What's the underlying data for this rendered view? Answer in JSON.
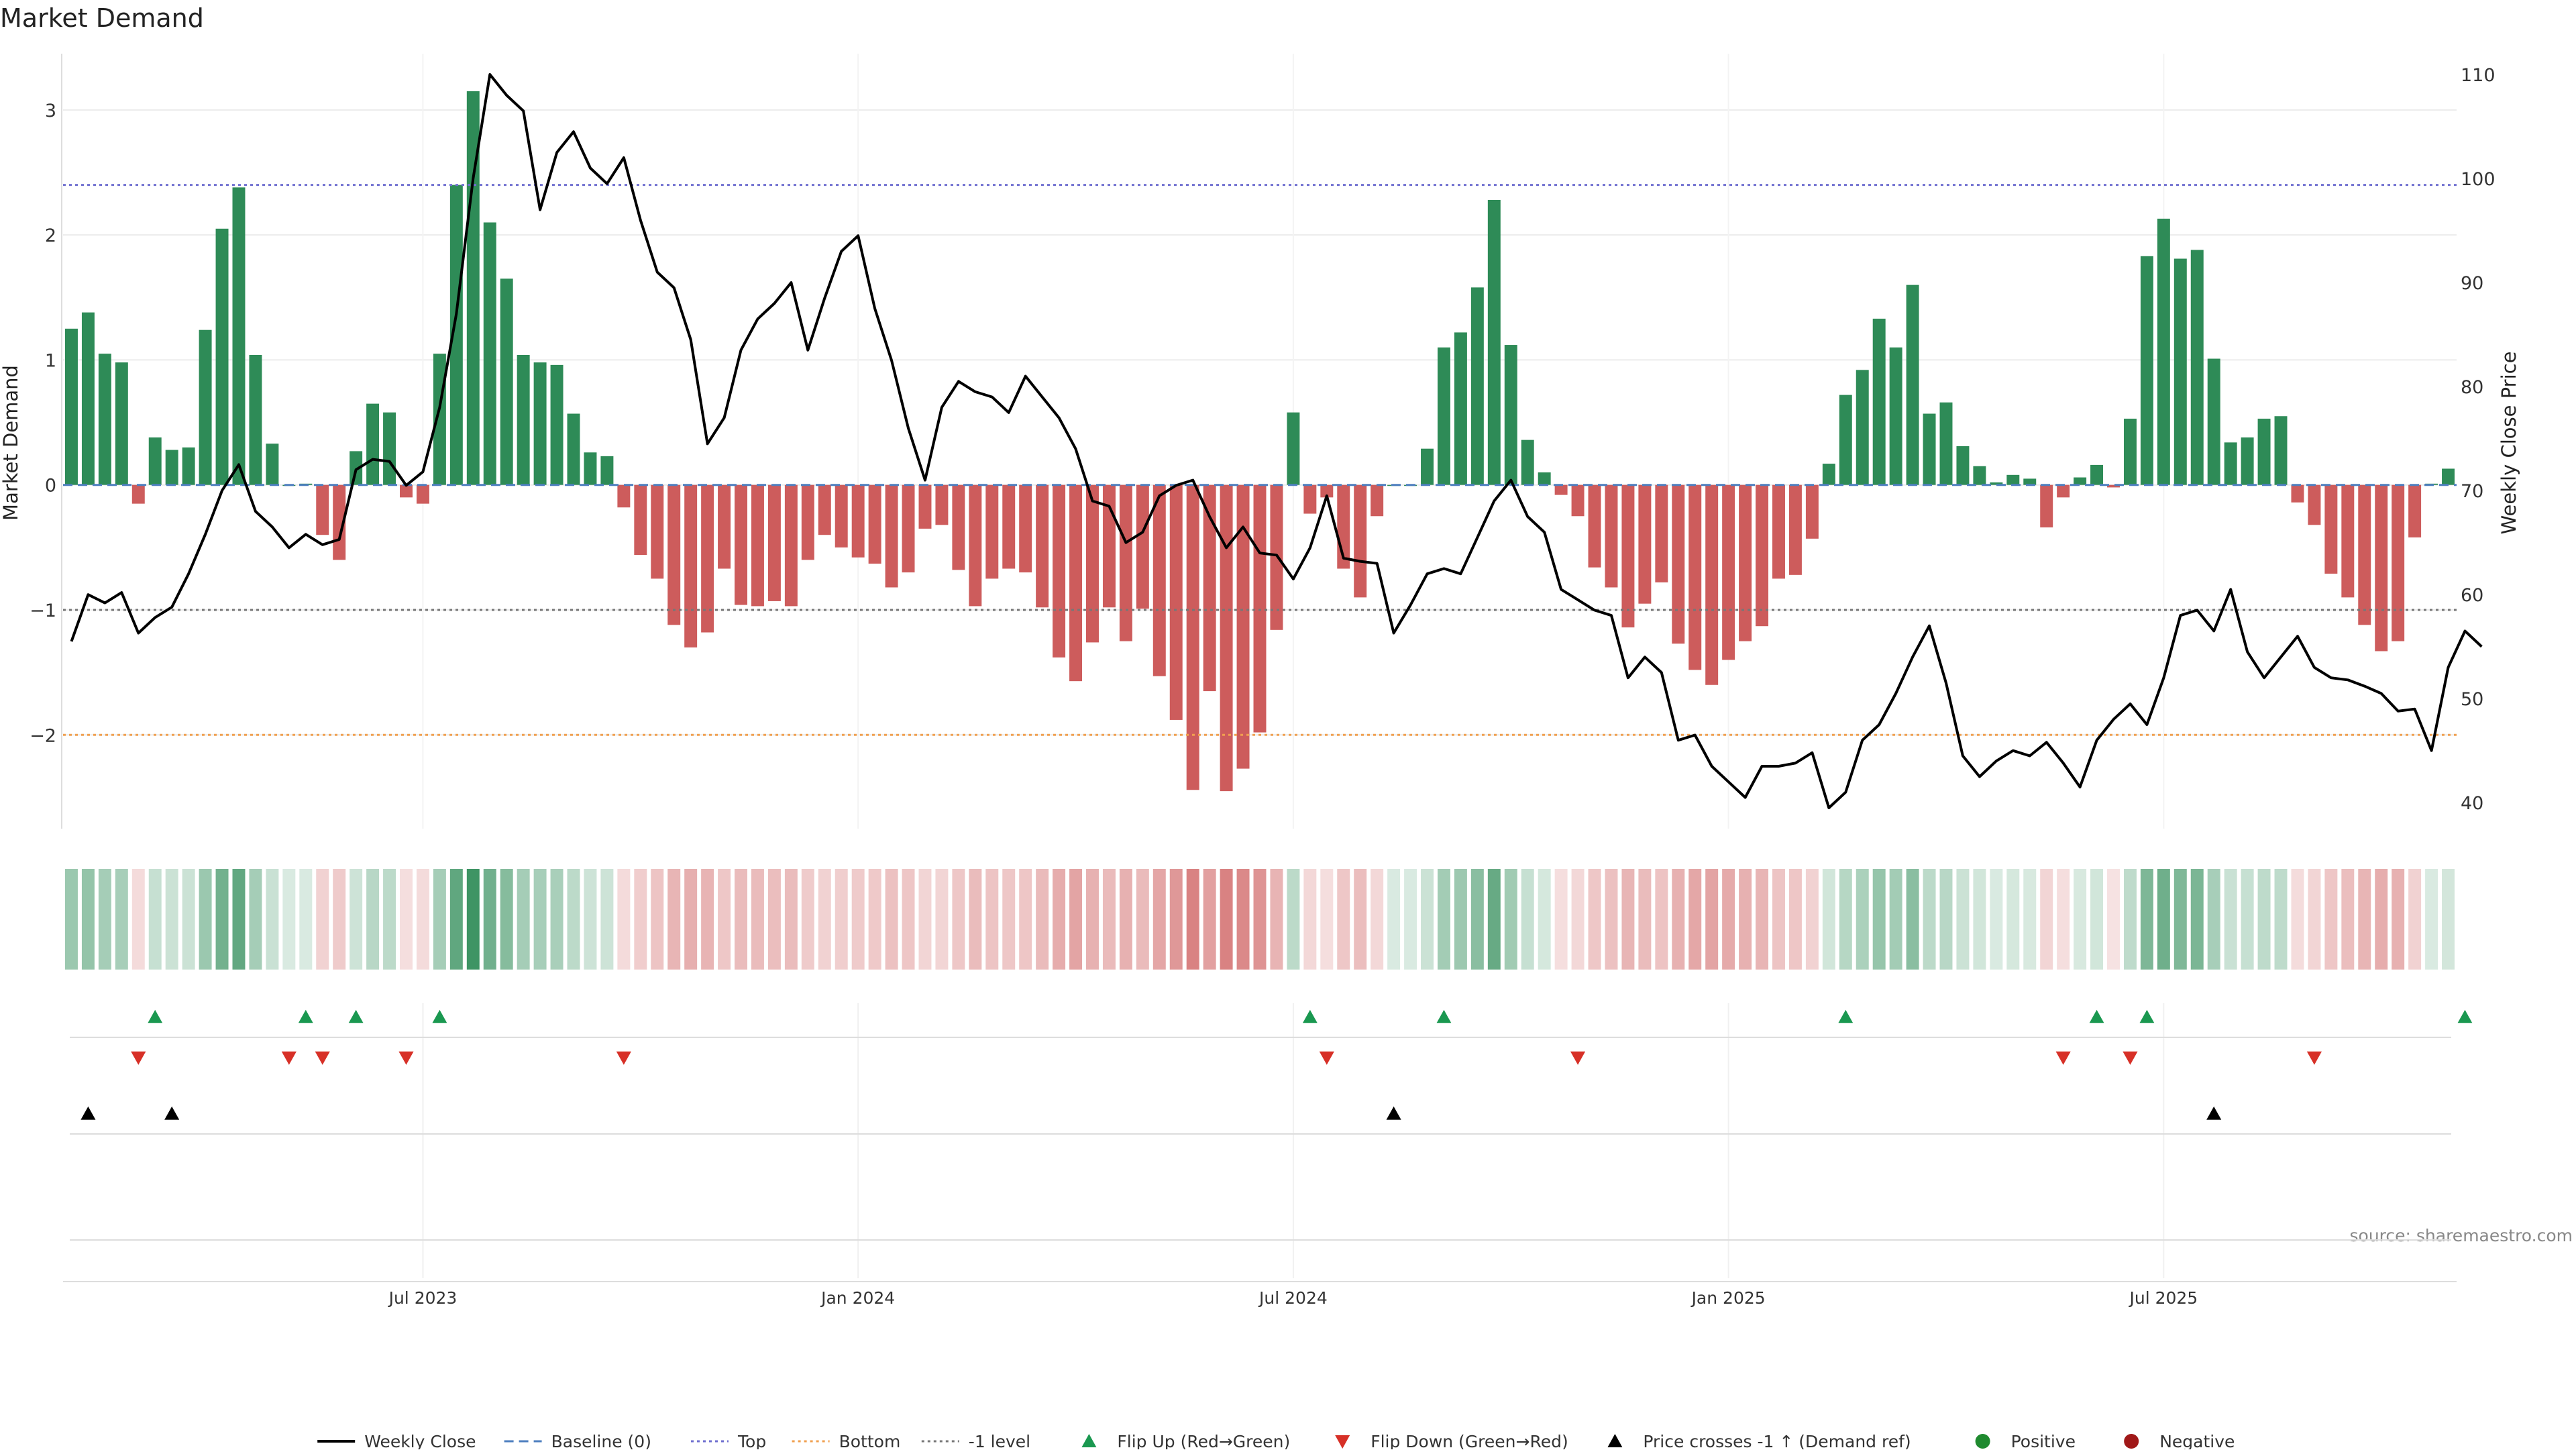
{
  "title": "Market Demand",
  "source": "source: sharemaestro.com",
  "colors": {
    "positive": "#2e8b57",
    "negative": "#cd5c5c",
    "line": "#000000",
    "baseline": "#4e7fbf",
    "top": "#7070d0",
    "bottom": "#f0a050",
    "minus1": "#777777",
    "flip_up": "#1a9850",
    "flip_down": "#d73027",
    "cross": "#000000",
    "grid": "#ececec"
  },
  "chart_data": {
    "type": "bar",
    "title": "Market Demand",
    "ylabel": "Market Demand",
    "y2label": "Weekly Close Price",
    "ylim": [
      -2.75,
      3.45
    ],
    "y2lim": [
      37.5,
      112
    ],
    "yticks": [
      3,
      2,
      1,
      0,
      -1,
      -2
    ],
    "ytick_labels": [
      "3",
      "2",
      "1",
      "0",
      "−1",
      "−2"
    ],
    "y2ticks": [
      110,
      100,
      90,
      80,
      70,
      60,
      50,
      40
    ],
    "y2tick_labels": [
      "110",
      "100",
      "90",
      "80",
      "70",
      "60",
      "50",
      "40"
    ],
    "reference_lines": {
      "top": 2.4,
      "bottom": -2.0,
      "minus1": -1.0,
      "baseline": 0
    },
    "x_ticks": [
      {
        "index": 21.5,
        "label": "Jul 2023"
      },
      {
        "index": 47.5,
        "label": "Jan 2024"
      },
      {
        "index": 73.5,
        "label": "Jul 2024"
      },
      {
        "index": 99.5,
        "label": "Jan 2025"
      },
      {
        "index": 125.5,
        "label": "Jul 2025"
      }
    ],
    "demand": [
      1.25,
      1.38,
      1.05,
      0.98,
      -0.15,
      0.38,
      0.28,
      0.3,
      1.24,
      2.05,
      2.38,
      1.04,
      0.33,
      0.0,
      0.01,
      -0.4,
      -0.6,
      0.27,
      0.65,
      0.58,
      -0.1,
      -0.15,
      1.05,
      2.4,
      3.15,
      2.1,
      1.65,
      1.04,
      0.98,
      0.96,
      0.57,
      0.26,
      0.23,
      -0.18,
      -0.56,
      -0.75,
      -1.12,
      -1.3,
      -1.18,
      -0.67,
      -0.96,
      -0.97,
      -0.93,
      -0.97,
      -0.6,
      -0.4,
      -0.5,
      -0.58,
      -0.63,
      -0.82,
      -0.7,
      -0.35,
      -0.32,
      -0.68,
      -0.97,
      -0.75,
      -0.67,
      -0.7,
      -0.98,
      -1.38,
      -1.57,
      -1.26,
      -0.98,
      -1.25,
      -0.99,
      -1.53,
      -1.88,
      -2.44,
      -1.65,
      -2.45,
      -2.27,
      -1.98,
      -1.16,
      0.58,
      -0.23,
      -0.1,
      -0.67,
      -0.9,
      -0.25,
      0.0,
      0.0,
      0.29,
      1.1,
      1.22,
      1.58,
      2.28,
      1.12,
      0.36,
      0.1,
      -0.08,
      -0.25,
      -0.66,
      -0.82,
      -1.14,
      -0.95,
      -0.78,
      -1.27,
      -1.48,
      -1.6,
      -1.4,
      -1.25,
      -1.13,
      -0.75,
      -0.72,
      -0.43,
      0.17,
      0.72,
      0.92,
      1.33,
      1.1,
      1.6,
      0.57,
      0.66,
      0.31,
      0.15,
      0.02,
      0.08,
      0.05,
      -0.34,
      -0.1,
      0.06,
      0.16,
      -0.02,
      0.53,
      1.83,
      2.13,
      1.81,
      1.88,
      1.01,
      0.34,
      0.38,
      0.53,
      0.55,
      -0.14,
      -0.32,
      -0.71,
      -0.9,
      -1.12,
      -1.33,
      -1.25,
      -0.42,
      0.01,
      0.13
    ],
    "price": [
      55.5,
      60.0,
      59.2,
      60.2,
      56.3,
      57.8,
      58.8,
      62.0,
      65.8,
      70.0,
      72.5,
      68.0,
      66.5,
      64.5,
      65.8,
      64.8,
      65.3,
      72.0,
      73.0,
      72.8,
      70.5,
      71.8,
      78.0,
      87.0,
      100.0,
      110.0,
      108.0,
      106.5,
      97.0,
      102.5,
      104.5,
      101.0,
      99.5,
      102.0,
      96.0,
      91.0,
      89.5,
      84.5,
      74.5,
      77.0,
      83.5,
      86.5,
      88.0,
      90.0,
      83.5,
      88.5,
      93.0,
      94.5,
      87.5,
      82.5,
      76.0,
      71.0,
      78.0,
      80.5,
      79.5,
      79.0,
      77.5,
      81.0,
      79.0,
      77.0,
      74.0,
      69.0,
      68.5,
      65.0,
      66.0,
      69.5,
      70.5,
      71.0,
      67.5,
      64.5,
      66.5,
      64.0,
      63.8,
      61.5,
      64.5,
      69.5,
      63.5,
      63.2,
      63.0,
      56.3,
      59.0,
      62.0,
      62.5,
      62.0,
      65.5,
      69.0,
      71.0,
      67.5,
      66.0,
      60.5,
      59.5,
      58.5,
      58.0,
      52.0,
      54.0,
      52.5,
      46.0,
      46.5,
      43.5,
      42.0,
      40.5,
      43.5,
      43.5,
      43.8,
      44.8,
      39.5,
      41.0,
      46.0,
      47.5,
      50.5,
      54.0,
      57.0,
      51.5,
      44.5,
      42.5,
      44.0,
      45.0,
      44.5,
      45.8,
      43.8,
      41.5,
      46.0,
      48.0,
      49.5,
      47.5,
      52.0,
      58.0,
      58.5,
      56.5,
      60.5,
      54.5,
      52.0,
      54.0,
      56.0,
      53.0,
      52.0,
      51.8,
      51.2,
      50.5,
      48.8,
      49.0,
      45.0,
      53.0,
      56.5,
      55.0
    ],
    "flip_up": [
      5,
      14,
      17,
      22,
      74,
      82,
      106,
      121,
      124,
      143
    ],
    "flip_down": [
      4,
      13,
      15,
      20,
      33,
      75,
      90,
      119,
      123,
      134
    ],
    "price_crosses_up": [
      1,
      6,
      79,
      128
    ],
    "legend": {
      "placement": "bottom",
      "entries": [
        {
          "label": "Weekly Close",
          "kind": "line"
        },
        {
          "label": "Baseline (0)",
          "kind": "baseline"
        },
        {
          "label": "Top",
          "kind": "top"
        },
        {
          "label": "Bottom",
          "kind": "bottom"
        },
        {
          "label": "-1 level",
          "kind": "minus1"
        },
        {
          "label": "Flip Up (Red→Green)",
          "kind": "flip_up"
        },
        {
          "label": "Flip Down (Green→Red)",
          "kind": "flip_down"
        },
        {
          "label": "Price crosses -1 ↑ (Demand ref)",
          "kind": "cross"
        },
        {
          "label": "Positive",
          "kind": "positive"
        },
        {
          "label": "Negative",
          "kind": "negative"
        }
      ]
    }
  }
}
